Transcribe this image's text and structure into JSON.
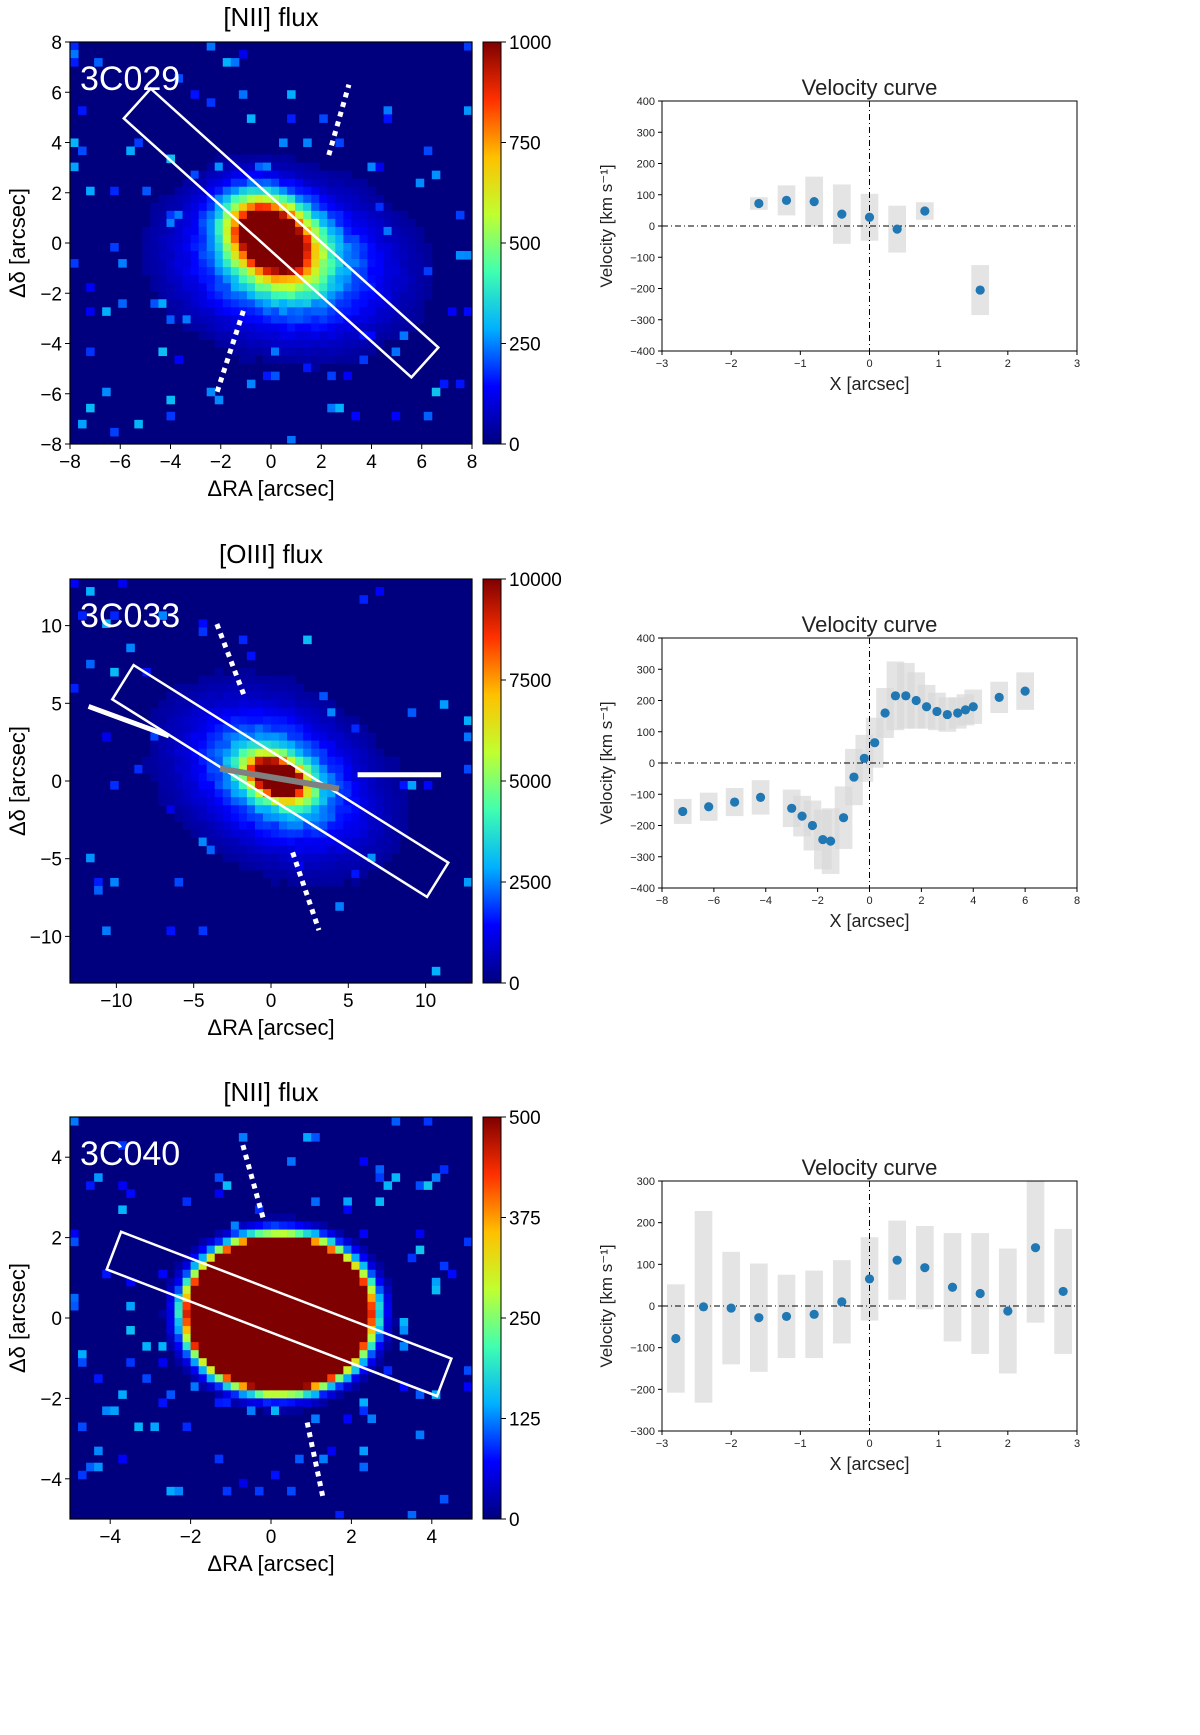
{
  "chart_data": [
    {
      "type": "heatmap",
      "title": "[NII] flux",
      "label": "3C029",
      "xlabel": "ΔRA [arcsec]",
      "ylabel": "Δδ [arcsec]",
      "xlim": [
        -8,
        8
      ],
      "ylim": [
        -8,
        8
      ],
      "xticks": [
        "−8",
        "−6",
        "−4",
        "−2",
        "0",
        "2",
        "4",
        "6",
        "8"
      ],
      "yticks": [
        "−8",
        "−6",
        "−4",
        "−2",
        "0",
        "2",
        "4",
        "6",
        "8"
      ],
      "colorbar": {
        "range": [
          0,
          1000
        ],
        "ticks": [
          "0",
          "250",
          "500",
          "750",
          "1000"
        ]
      },
      "colormap": [
        "#00007f",
        "#0000ff",
        "#00b0ff",
        "#40ffb0",
        "#c0ff30",
        "#ffc000",
        "#ff3000",
        "#7f0000"
      ]
    },
    {
      "type": "scatter",
      "title": "Velocity curve",
      "xlabel": "X [arcsec]",
      "ylabel": "Velocity [km s⁻¹]",
      "xlim": [
        -3,
        3
      ],
      "ylim": [
        -400,
        400
      ],
      "xticks": [
        "−3",
        "−2",
        "−1",
        "0",
        "1",
        "2",
        "3"
      ],
      "yticks": [
        "−400",
        "−300",
        "−200",
        "−100",
        "0",
        "100",
        "200",
        "300",
        "400"
      ],
      "x": [
        -1.6,
        -1.2,
        -0.8,
        -0.4,
        0.0,
        0.4,
        0.8,
        1.6
      ],
      "y": [
        72,
        82,
        78,
        38,
        28,
        -10,
        48,
        -205
      ],
      "err": [
        20,
        48,
        80,
        95,
        75,
        75,
        28,
        80
      ]
    },
    {
      "type": "heatmap",
      "title": "[OIII] flux",
      "label": "3C033",
      "xlabel": "ΔRA [arcsec]",
      "ylabel": "Δδ [arcsec]",
      "xlim": [
        -13,
        13
      ],
      "ylim": [
        -13,
        13
      ],
      "xticks": [
        "−10",
        "−5",
        "0",
        "5",
        "10"
      ],
      "yticks": [
        "−10",
        "−5",
        "0",
        "5",
        "10"
      ],
      "colorbar": {
        "range": [
          0,
          10000
        ],
        "ticks": [
          "0",
          "2500",
          "5000",
          "7500",
          "10000"
        ]
      },
      "colormap": [
        "#00007f",
        "#0000ff",
        "#00b0ff",
        "#40ffb0",
        "#c0ff30",
        "#ffc000",
        "#ff3000",
        "#7f0000"
      ]
    },
    {
      "type": "scatter",
      "title": "Velocity curve",
      "xlabel": "X [arcsec]",
      "ylabel": "Velocity [km s⁻¹]",
      "xlim": [
        -8,
        8
      ],
      "ylim": [
        -400,
        400
      ],
      "xticks": [
        "−8",
        "−6",
        "−4",
        "−2",
        "0",
        "2",
        "4",
        "6",
        "8"
      ],
      "yticks": [
        "−400",
        "−300",
        "−200",
        "−100",
        "0",
        "100",
        "200",
        "300",
        "400"
      ],
      "x": [
        -7.2,
        -6.2,
        -5.2,
        -4.2,
        -3.0,
        -2.6,
        -2.2,
        -1.8,
        -1.5,
        -1.0,
        -0.6,
        -0.2,
        0.2,
        0.6,
        1.0,
        1.4,
        1.8,
        2.2,
        2.6,
        3.0,
        3.4,
        3.7,
        4.0,
        5.0,
        6.0
      ],
      "y": [
        -155,
        -140,
        -125,
        -110,
        -145,
        -170,
        -200,
        -245,
        -250,
        -175,
        -45,
        15,
        65,
        160,
        215,
        215,
        200,
        180,
        165,
        155,
        160,
        170,
        180,
        210,
        230
      ],
      "err": [
        40,
        45,
        45,
        55,
        60,
        65,
        80,
        95,
        105,
        100,
        90,
        75,
        80,
        80,
        110,
        105,
        90,
        70,
        60,
        55,
        50,
        50,
        55,
        50,
        60
      ]
    },
    {
      "type": "heatmap",
      "title": "[NII] flux",
      "label": "3C040",
      "xlabel": "ΔRA [arcsec]",
      "ylabel": "Δδ [arcsec]",
      "xlim": [
        -5,
        5
      ],
      "ylim": [
        -5,
        5
      ],
      "xticks": [
        "−4",
        "−2",
        "0",
        "2",
        "4"
      ],
      "yticks": [
        "−4",
        "−2",
        "0",
        "2",
        "4"
      ],
      "colorbar": {
        "range": [
          0,
          500
        ],
        "ticks": [
          "0",
          "125",
          "250",
          "375",
          "500"
        ]
      },
      "colormap": [
        "#00007f",
        "#0000ff",
        "#00b0ff",
        "#40ffb0",
        "#c0ff30",
        "#ffc000",
        "#ff3000",
        "#7f0000"
      ]
    },
    {
      "type": "scatter",
      "title": "Velocity curve",
      "xlabel": "X [arcsec]",
      "ylabel": "Velocity [km s⁻¹]",
      "xlim": [
        -3,
        3
      ],
      "ylim": [
        -300,
        300
      ],
      "xticks": [
        "−3",
        "−2",
        "−1",
        "0",
        "1",
        "2",
        "3"
      ],
      "yticks": [
        "−300",
        "−200",
        "−100",
        "0",
        "100",
        "200",
        "300"
      ],
      "x": [
        -2.8,
        -2.4,
        -2.0,
        -1.6,
        -1.2,
        -0.8,
        -0.4,
        0.0,
        0.4,
        0.8,
        1.2,
        1.6,
        2.0,
        2.4,
        2.8
      ],
      "y": [
        -78,
        -2,
        -5,
        -28,
        -25,
        -20,
        10,
        65,
        110,
        92,
        45,
        30,
        -12,
        140,
        35
      ],
      "err": [
        130,
        230,
        135,
        130,
        100,
        105,
        100,
        100,
        95,
        100,
        130,
        145,
        150,
        180,
        150
      ]
    }
  ]
}
